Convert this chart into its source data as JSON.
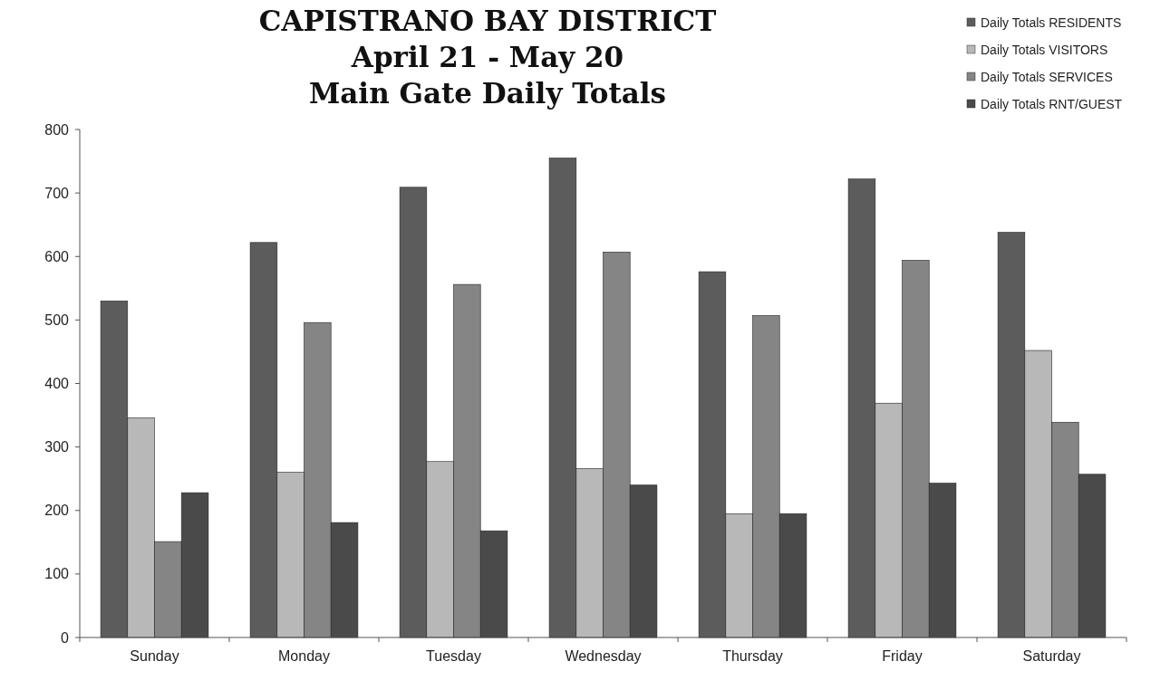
{
  "chart_data": {
    "type": "bar",
    "title": "CAPISTRANO BAY DISTRICT\nApril 21 - May 20\nMain Gate Daily Totals",
    "categories": [
      "Sunday",
      "Monday",
      "Tuesday",
      "Wednesday",
      "Thursday",
      "Friday",
      "Saturday"
    ],
    "series": [
      {
        "name": "Daily Totals RESIDENTS",
        "color": "#5c5c5c",
        "values": [
          530,
          622,
          709,
          755,
          576,
          722,
          638
        ]
      },
      {
        "name": "Daily Totals VISITORS",
        "color": "#b8b8b8",
        "values": [
          346,
          260,
          277,
          266,
          195,
          369,
          452
        ]
      },
      {
        "name": "Daily Totals SERVICES",
        "color": "#858585",
        "values": [
          151,
          496,
          556,
          607,
          507,
          594,
          339
        ]
      },
      {
        "name": "Daily Totals RNT/GUEST",
        "color": "#4a4a4a",
        "values": [
          228,
          181,
          168,
          240,
          195,
          243,
          257
        ]
      }
    ],
    "ylim": [
      0,
      800
    ],
    "yticks": [
      0,
      100,
      200,
      300,
      400,
      500,
      600,
      700,
      800
    ],
    "grid": false,
    "legend": "top right"
  }
}
